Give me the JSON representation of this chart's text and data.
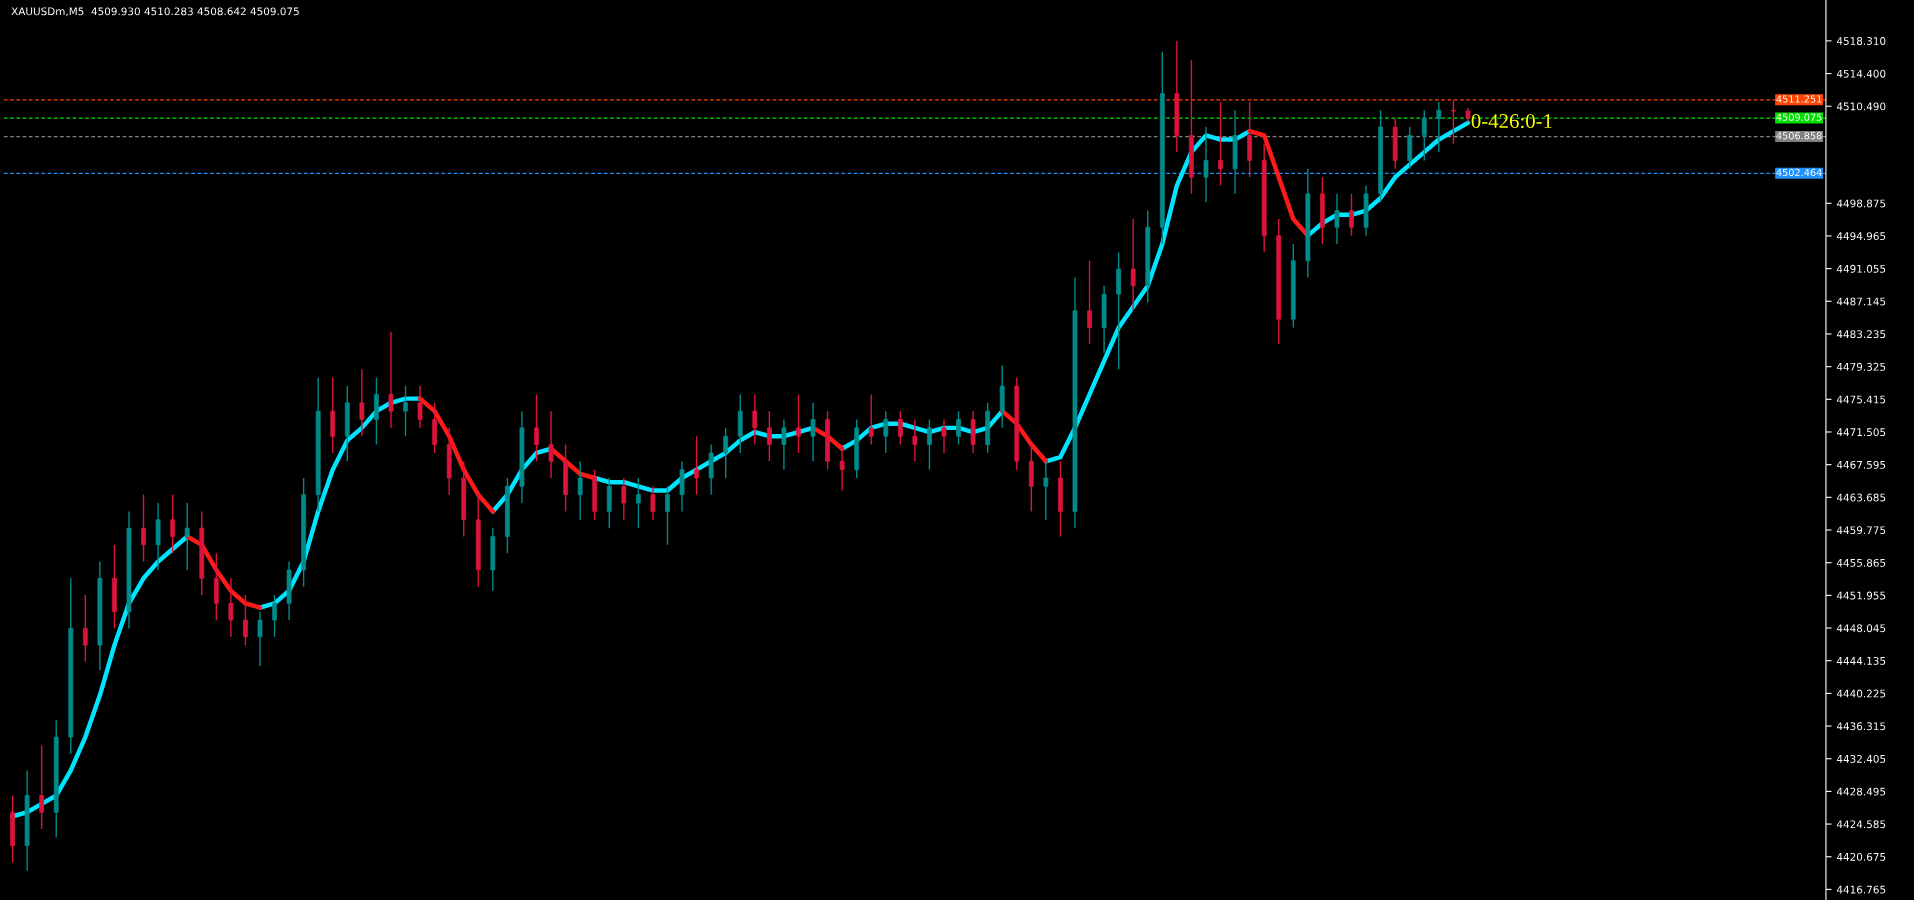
{
  "chart_data": {
    "type": "candlestick",
    "title": "XAUUSDm,M5  4509.930 4510.283 4508.642 4509.075",
    "categories": [
      null,
      null,
      null,
      null,
      null,
      null,
      null,
      null,
      null,
      null,
      null,
      null,
      null,
      null,
      null,
      null,
      null,
      null,
      null,
      null,
      null,
      null,
      null,
      null,
      null,
      null,
      null,
      null,
      null,
      null,
      null,
      null,
      null,
      null,
      null,
      null,
      null,
      null,
      null,
      null,
      null,
      null,
      null,
      null,
      null,
      null,
      null,
      null,
      null,
      null,
      null,
      null,
      null,
      null,
      null,
      null,
      null,
      null,
      null,
      null,
      null,
      null,
      null,
      null,
      null,
      null,
      null,
      null,
      null,
      null,
      null,
      null,
      null,
      null,
      null,
      null,
      null,
      null,
      null,
      null,
      null,
      null,
      null,
      null,
      null,
      null,
      null,
      null,
      null,
      null,
      null,
      null,
      null,
      null,
      null,
      null,
      null,
      null,
      null,
      null,
      null,
      null,
      null,
      null,
      null,
      null,
      null,
      null,
      null,
      null,
      null,
      null,
      null,
      null,
      null,
      null,
      null,
      null,
      null,
      null,
      null,
      null,
      null,
      null,
      null
    ],
    "ohlc": [
      [
        4426,
        4428,
        4420,
        4422
      ],
      [
        4422,
        4431,
        4419,
        4428
      ],
      [
        4428,
        4434,
        4424,
        4426
      ],
      [
        4426,
        4437,
        4423,
        4435
      ],
      [
        4435,
        4454,
        4433,
        4448
      ],
      [
        4448,
        4452,
        4444,
        4446
      ],
      [
        4446,
        4456,
        4443,
        4454
      ],
      [
        4454,
        4458,
        4448,
        4450
      ],
      [
        4450,
        4462,
        4448,
        4460
      ],
      [
        4460,
        4464,
        4456,
        4458
      ],
      [
        4458,
        4463,
        4455,
        4461
      ],
      [
        4461,
        4464,
        4457,
        4459
      ],
      [
        4459,
        4463,
        4455,
        4460
      ],
      [
        4460,
        4462,
        4452,
        4454
      ],
      [
        4454,
        4457,
        4449,
        4451
      ],
      [
        4451,
        4454,
        4447,
        4449
      ],
      [
        4449,
        4452,
        4446,
        4447
      ],
      [
        4447,
        4450,
        4443.5,
        4449
      ],
      [
        4449,
        4452,
        4447,
        4451
      ],
      [
        4451,
        4456,
        4449,
        4455
      ],
      [
        4455,
        4466,
        4453,
        4464
      ],
      [
        4464,
        4478,
        4462,
        4474
      ],
      [
        4474,
        4478,
        4469,
        4471
      ],
      [
        4471,
        4477,
        4468,
        4475
      ],
      [
        4475,
        4479,
        4471,
        4473
      ],
      [
        4473,
        4478,
        4470,
        4476
      ],
      [
        4476,
        4483.5,
        4472,
        4474
      ],
      [
        4474,
        4477,
        4471,
        4475
      ],
      [
        4475,
        4477,
        4472,
        4473
      ],
      [
        4473,
        4475,
        4469,
        4470
      ],
      [
        4470,
        4472,
        4464,
        4466
      ],
      [
        4466,
        4468,
        4459,
        4461
      ],
      [
        4461,
        4464,
        4453,
        4455
      ],
      [
        4455,
        4460,
        4452.5,
        4459
      ],
      [
        4459,
        4466,
        4457,
        4465
      ],
      [
        4465,
        4474,
        4463,
        4472
      ],
      [
        4472,
        4476,
        4468,
        4470
      ],
      [
        4470,
        4474,
        4466,
        4468
      ],
      [
        4468,
        4470,
        4462,
        4464
      ],
      [
        4464,
        4468,
        4461,
        4466
      ],
      [
        4466,
        4467,
        4461,
        4462
      ],
      [
        4462,
        4466,
        4460,
        4465
      ],
      [
        4465,
        4466,
        4461,
        4463
      ],
      [
        4463,
        4466,
        4460,
        4464
      ],
      [
        4464,
        4465,
        4461,
        4462
      ],
      [
        4462,
        4465,
        4458,
        4464
      ],
      [
        4464,
        4468,
        4462,
        4467
      ],
      [
        4467,
        4471,
        4464,
        4466
      ],
      [
        4466,
        4470,
        4464,
        4469
      ],
      [
        4469,
        4472,
        4466,
        4471
      ],
      [
        4471,
        4476,
        4469,
        4474
      ],
      [
        4474,
        4476,
        4470,
        4472
      ],
      [
        4472,
        4474,
        4468,
        4470
      ],
      [
        4470,
        4473,
        4467,
        4472
      ],
      [
        4472,
        4476,
        4469,
        4471
      ],
      [
        4471,
        4475,
        4468,
        4473
      ],
      [
        4473,
        4474,
        4467,
        4468
      ],
      [
        4468,
        4470,
        4464.5,
        4467
      ],
      [
        4467,
        4473,
        4466,
        4472
      ],
      [
        4472,
        4476,
        4470,
        4471
      ],
      [
        4471,
        4474,
        4469,
        4473
      ],
      [
        4473,
        4474,
        4470,
        4471
      ],
      [
        4471,
        4473,
        4468,
        4470
      ],
      [
        4470,
        4473,
        4467,
        4472
      ],
      [
        4472,
        4473,
        4469,
        4471
      ],
      [
        4471,
        4474,
        4470,
        4473
      ],
      [
        4473,
        4474,
        4469,
        4470
      ],
      [
        4470,
        4475,
        4469,
        4474
      ],
      [
        4474,
        4479.5,
        4472,
        4477
      ],
      [
        4477,
        4478,
        4467,
        4468
      ],
      [
        4468,
        4470,
        4462,
        4465
      ],
      [
        4465,
        4468,
        4461,
        4466
      ],
      [
        4466,
        4468,
        4459,
        4462
      ],
      [
        4462,
        4490,
        4460,
        4486
      ],
      [
        4486,
        4492,
        4482,
        4484
      ],
      [
        4484,
        4489,
        4481,
        4488
      ],
      [
        4488,
        4493,
        4479,
        4491
      ],
      [
        4491,
        4497,
        4486,
        4489
      ],
      [
        4489,
        4498,
        4487,
        4496
      ],
      [
        4496,
        4517,
        4494,
        4512
      ],
      [
        4512,
        4518.3,
        4505,
        4507
      ],
      [
        4507,
        4516,
        4500,
        4502
      ],
      [
        4502,
        4508,
        4499,
        4504
      ],
      [
        4504,
        4511,
        4501,
        4503
      ],
      [
        4503,
        4510,
        4500,
        4507
      ],
      [
        4507,
        4511,
        4502,
        4504
      ],
      [
        4504,
        4506,
        4493,
        4495
      ],
      [
        4495,
        4497,
        4482,
        4485
      ],
      [
        4485,
        4494,
        4484,
        4492
      ],
      [
        4492,
        4503,
        4490,
        4500
      ],
      [
        4500,
        4502,
        4494,
        4496
      ],
      [
        4496,
        4500,
        4494,
        4498
      ],
      [
        4498,
        4500,
        4495,
        4496
      ],
      [
        4496,
        4501,
        4495,
        4500
      ],
      [
        4500,
        4510,
        4499,
        4508
      ],
      [
        4508,
        4509,
        4503,
        4504
      ],
      [
        4504,
        4508,
        4503,
        4507
      ],
      [
        4507,
        4510,
        4504,
        4509
      ],
      [
        4509,
        4511,
        4505,
        4510
      ],
      [
        4510,
        4511.2,
        4506,
        4509.9
      ],
      [
        4509.93,
        4510.283,
        4508.642,
        4509.075
      ],
      null,
      null,
      null,
      null,
      null,
      null,
      null,
      null,
      null,
      null,
      null,
      null,
      null,
      null,
      null,
      null,
      null,
      null,
      null,
      null,
      null,
      null,
      null,
      null
    ],
    "series": [
      {
        "type": "line",
        "color": "#00e5ff",
        "values": [
          4425.5,
          4426,
          4427,
          4428,
          4431,
          4435,
          4440,
          4446,
          4451,
          4454,
          4456,
          4457.5,
          4459,
          null,
          null,
          null,
          null,
          4450.5,
          4451,
          4452.5,
          4456,
          4462,
          4467,
          4470.5,
          4472,
          4474,
          4475,
          4475.5,
          4475.5,
          null,
          null,
          null,
          null,
          4462,
          4464,
          4467,
          4469,
          4469.5,
          null,
          null,
          4466,
          4465.5,
          4465.5,
          4465,
          4464.5,
          4464.5,
          4466,
          4467,
          4468,
          4469,
          4470.5,
          4471.5,
          4471,
          4471,
          4471.5,
          4472,
          null,
          4469.5,
          4470.5,
          4472,
          4472.5,
          4472.5,
          4472,
          4471.5,
          4472,
          4472,
          4471.5,
          4472,
          4474,
          null,
          null,
          4468,
          4468.5,
          4472,
          4476,
          4480,
          4484,
          4486.5,
          4489,
          4494,
          4501,
          4505,
          4507,
          4506.5,
          4506.5,
          4507.5,
          null,
          null,
          null,
          4495,
          4496.5,
          4497.5,
          4497.5,
          4498,
          4499.5,
          4502,
          4503.5,
          4505,
          4506.5,
          4507.5,
          4508.5,
          null,
          null,
          null,
          null,
          null,
          null,
          null,
          null,
          null,
          null,
          null,
          null,
          null,
          null,
          null,
          null,
          null,
          null,
          null,
          null,
          null,
          null,
          null,
          null
        ]
      },
      {
        "type": "line",
        "color": "#ff1a1a",
        "values": [
          null,
          null,
          null,
          null,
          null,
          null,
          null,
          null,
          null,
          null,
          null,
          null,
          4459,
          4458,
          4455,
          4452.5,
          4451,
          4450.5,
          null,
          null,
          null,
          null,
          null,
          null,
          null,
          null,
          null,
          null,
          4475.5,
          4474,
          4471,
          4467,
          4464,
          4462,
          null,
          null,
          null,
          4469.5,
          4468,
          4466.5,
          4466,
          null,
          null,
          null,
          null,
          null,
          null,
          null,
          null,
          null,
          null,
          null,
          null,
          null,
          null,
          4472,
          4471,
          4469.5,
          null,
          null,
          null,
          null,
          null,
          null,
          null,
          null,
          null,
          null,
          4474,
          4472.5,
          4470,
          4468,
          null,
          null,
          null,
          null,
          null,
          null,
          null,
          null,
          null,
          null,
          null,
          null,
          null,
          4507.5,
          4507,
          4502,
          4497,
          4495,
          null,
          null,
          null,
          null,
          null,
          null,
          null,
          null,
          null,
          null,
          null,
          null,
          null,
          null,
          null,
          null,
          null,
          null,
          null,
          null,
          null,
          null,
          null,
          null,
          null,
          null,
          null,
          null,
          null,
          null,
          null,
          null,
          null,
          null,
          null
        ]
      }
    ],
    "ylim": [
      4415.5,
      4523.2
    ],
    "yticks": [
      {
        "value": 4518.31,
        "label": "4518.310"
      },
      {
        "value": 4514.4,
        "label": "4514.400"
      },
      {
        "value": 4510.49,
        "label": "4510.490"
      },
      4498.875,
      4494.965,
      4491.055,
      4487.145,
      4483.235,
      4479.325,
      4475.415,
      4471.505,
      4467.595,
      4463.685,
      4459.775,
      4455.865,
      4451.955,
      4448.045,
      4444.135,
      4440.225,
      4436.315,
      4432.405,
      4428.495,
      4424.585,
      4420.675,
      4416.765
    ],
    "tick_labels": "y",
    "ref_lines": [
      {
        "axis": "y",
        "value": 4511.251,
        "label": "4511.251",
        "color": "#ff4500",
        "line_style": "dashed"
      },
      {
        "axis": "y",
        "value": 4509.075,
        "label": "4509.075",
        "color": "#00e000",
        "line_style": "dashed"
      },
      {
        "axis": "y",
        "value": 4506.858,
        "label": "4506.858",
        "color": "#808080",
        "line_style": "dashed"
      },
      {
        "axis": "y",
        "value": 4502.464,
        "label": "4502.464",
        "color": "#1e90ff",
        "line_style": "dashed"
      }
    ],
    "annotations": [
      "0-426:0-1"
    ]
  }
}
